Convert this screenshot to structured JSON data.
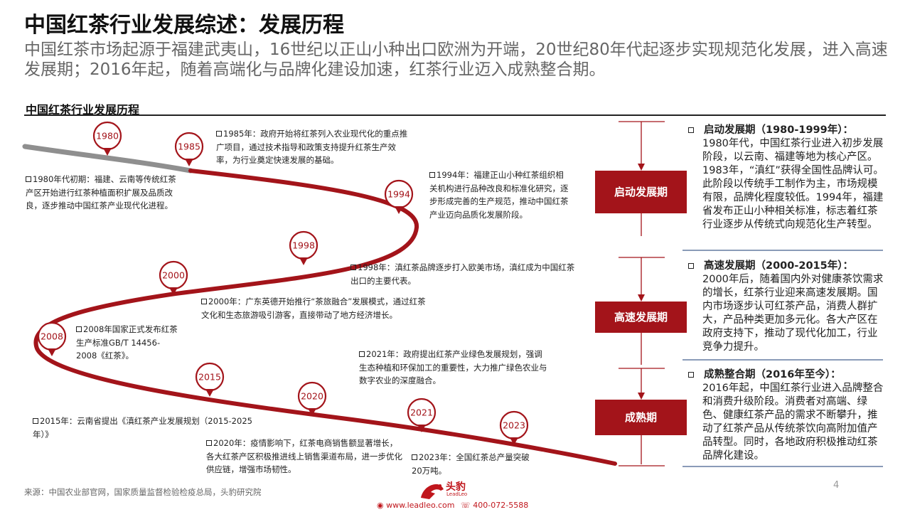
{
  "header": {
    "title": "中国红茶行业发展综述：发展历程",
    "subtitle": "中国红茶市场起源于福建武夷山，16世纪以正山小种出口欧洲为开端，20世纪80年代起逐步实现规范化发展，进入高速发展期；2016年起，随着高端化与品牌化建设加速，红茶行业迈入成熟整合期。"
  },
  "section": {
    "title": "中国红茶行业发展历程"
  },
  "timeline": {
    "colors": {
      "early": "#8f8f8f",
      "main": "#a3141a"
    },
    "markers": [
      {
        "year": "1980"
      },
      {
        "year": "1985"
      },
      {
        "year": "1994"
      },
      {
        "year": "1998"
      },
      {
        "year": "2000"
      },
      {
        "year": "2008"
      },
      {
        "year": "2015"
      },
      {
        "year": "2020"
      },
      {
        "year": "2021"
      },
      {
        "year": "2023"
      }
    ],
    "events": [
      {
        "text": "1985年：政府开始将红茶列入农业现代化的重点推广项目，通过技术指导和政策支持提升红茶生产效率，为行业奠定快速发展的基础。"
      },
      {
        "text": "1980年代初期：福建、云南等传统红茶产区开始进行红茶种植面积扩展及品质改良，逐步推动中国红茶产业现代化进程。"
      },
      {
        "text": "1994年：福建正山小种红茶组织相关机构进行品种改良和标准化研究，逐步形成完善的生产规范，推动中国红茶产业迈向品质化发展阶段。"
      },
      {
        "text": "1998年：滇红茶品牌逐步打入欧美市场，滇红成为中国红茶出口的主要代表。"
      },
      {
        "text": "2000年：广东英德开始推行“茶旅融合”发展模式，通过红茶文化和生态旅游吸引游客，直接带动了地方经济增长。"
      },
      {
        "text": "2008年国家正式发布红茶生产标准GB/T 14456-2008《红茶》。"
      },
      {
        "text": "2021年：政府提出红茶产业绿色发展规划，强调生态种植和环保加工的重要性，大力推广绿色农业与数字农业的深度融合。"
      },
      {
        "text": "2015年：云南省提出《滇红茶产业发展规划（2015-2025年）》"
      },
      {
        "text": "2020年：疫情影响下，红茶电商销售额显著增长，各大红茶产区积极推进线上销售渠道布局，进一步优化供应链，增强市场韧性。"
      },
      {
        "text": "2023年：全国红茶总产量突破20万吨。"
      }
    ]
  },
  "stages": [
    {
      "label": "启动发展期",
      "head": "启动发展期（1980-1999年）：",
      "body": "1980年代，中国红茶行业进入初步发展阶段，以云南、福建等地为核心产区。1983年，“滇红”获得全国性品牌认可。此阶段以传统手工制作为主，市场规模有限，品牌化程度较低。1994年，福建省发布正山小种相关标准，标志着红茶行业逐步从传统式向规范化生产转型。"
    },
    {
      "label": "高速发展期",
      "head": "高速发展期（2000-2015年）：",
      "body": "2000年后，随着国内外对健康茶饮需求的增长，红茶行业迎来高速发展期。国内市场逐步认可红茶产品，消费人群扩大，产品种类更加多元化。各大产区在政府支持下，推动了现代化加工，行业竞争力提升。"
    },
    {
      "label": "成熟期",
      "head": "成熟整合期（2016年至今）：",
      "body": "2016年起，中国红茶行业进入品牌整合和消费升级阶段。消费者对高端、绿色、健康红茶产品的需求不断攀升，推动了红茶产品从传统茶饮向高附加值产品转型。同时，各地政府积极推动红茶品牌化建设。"
    }
  ],
  "footer": {
    "source": "来源：中国农业部官网，国家质量监督检验检疫总局，头豹研究院",
    "page": "4",
    "brand": "头豹",
    "brand_en": "LeadLeo",
    "website": "www.leadleo.com",
    "phone": "400-072-5588",
    "accent": "#c0161c"
  }
}
